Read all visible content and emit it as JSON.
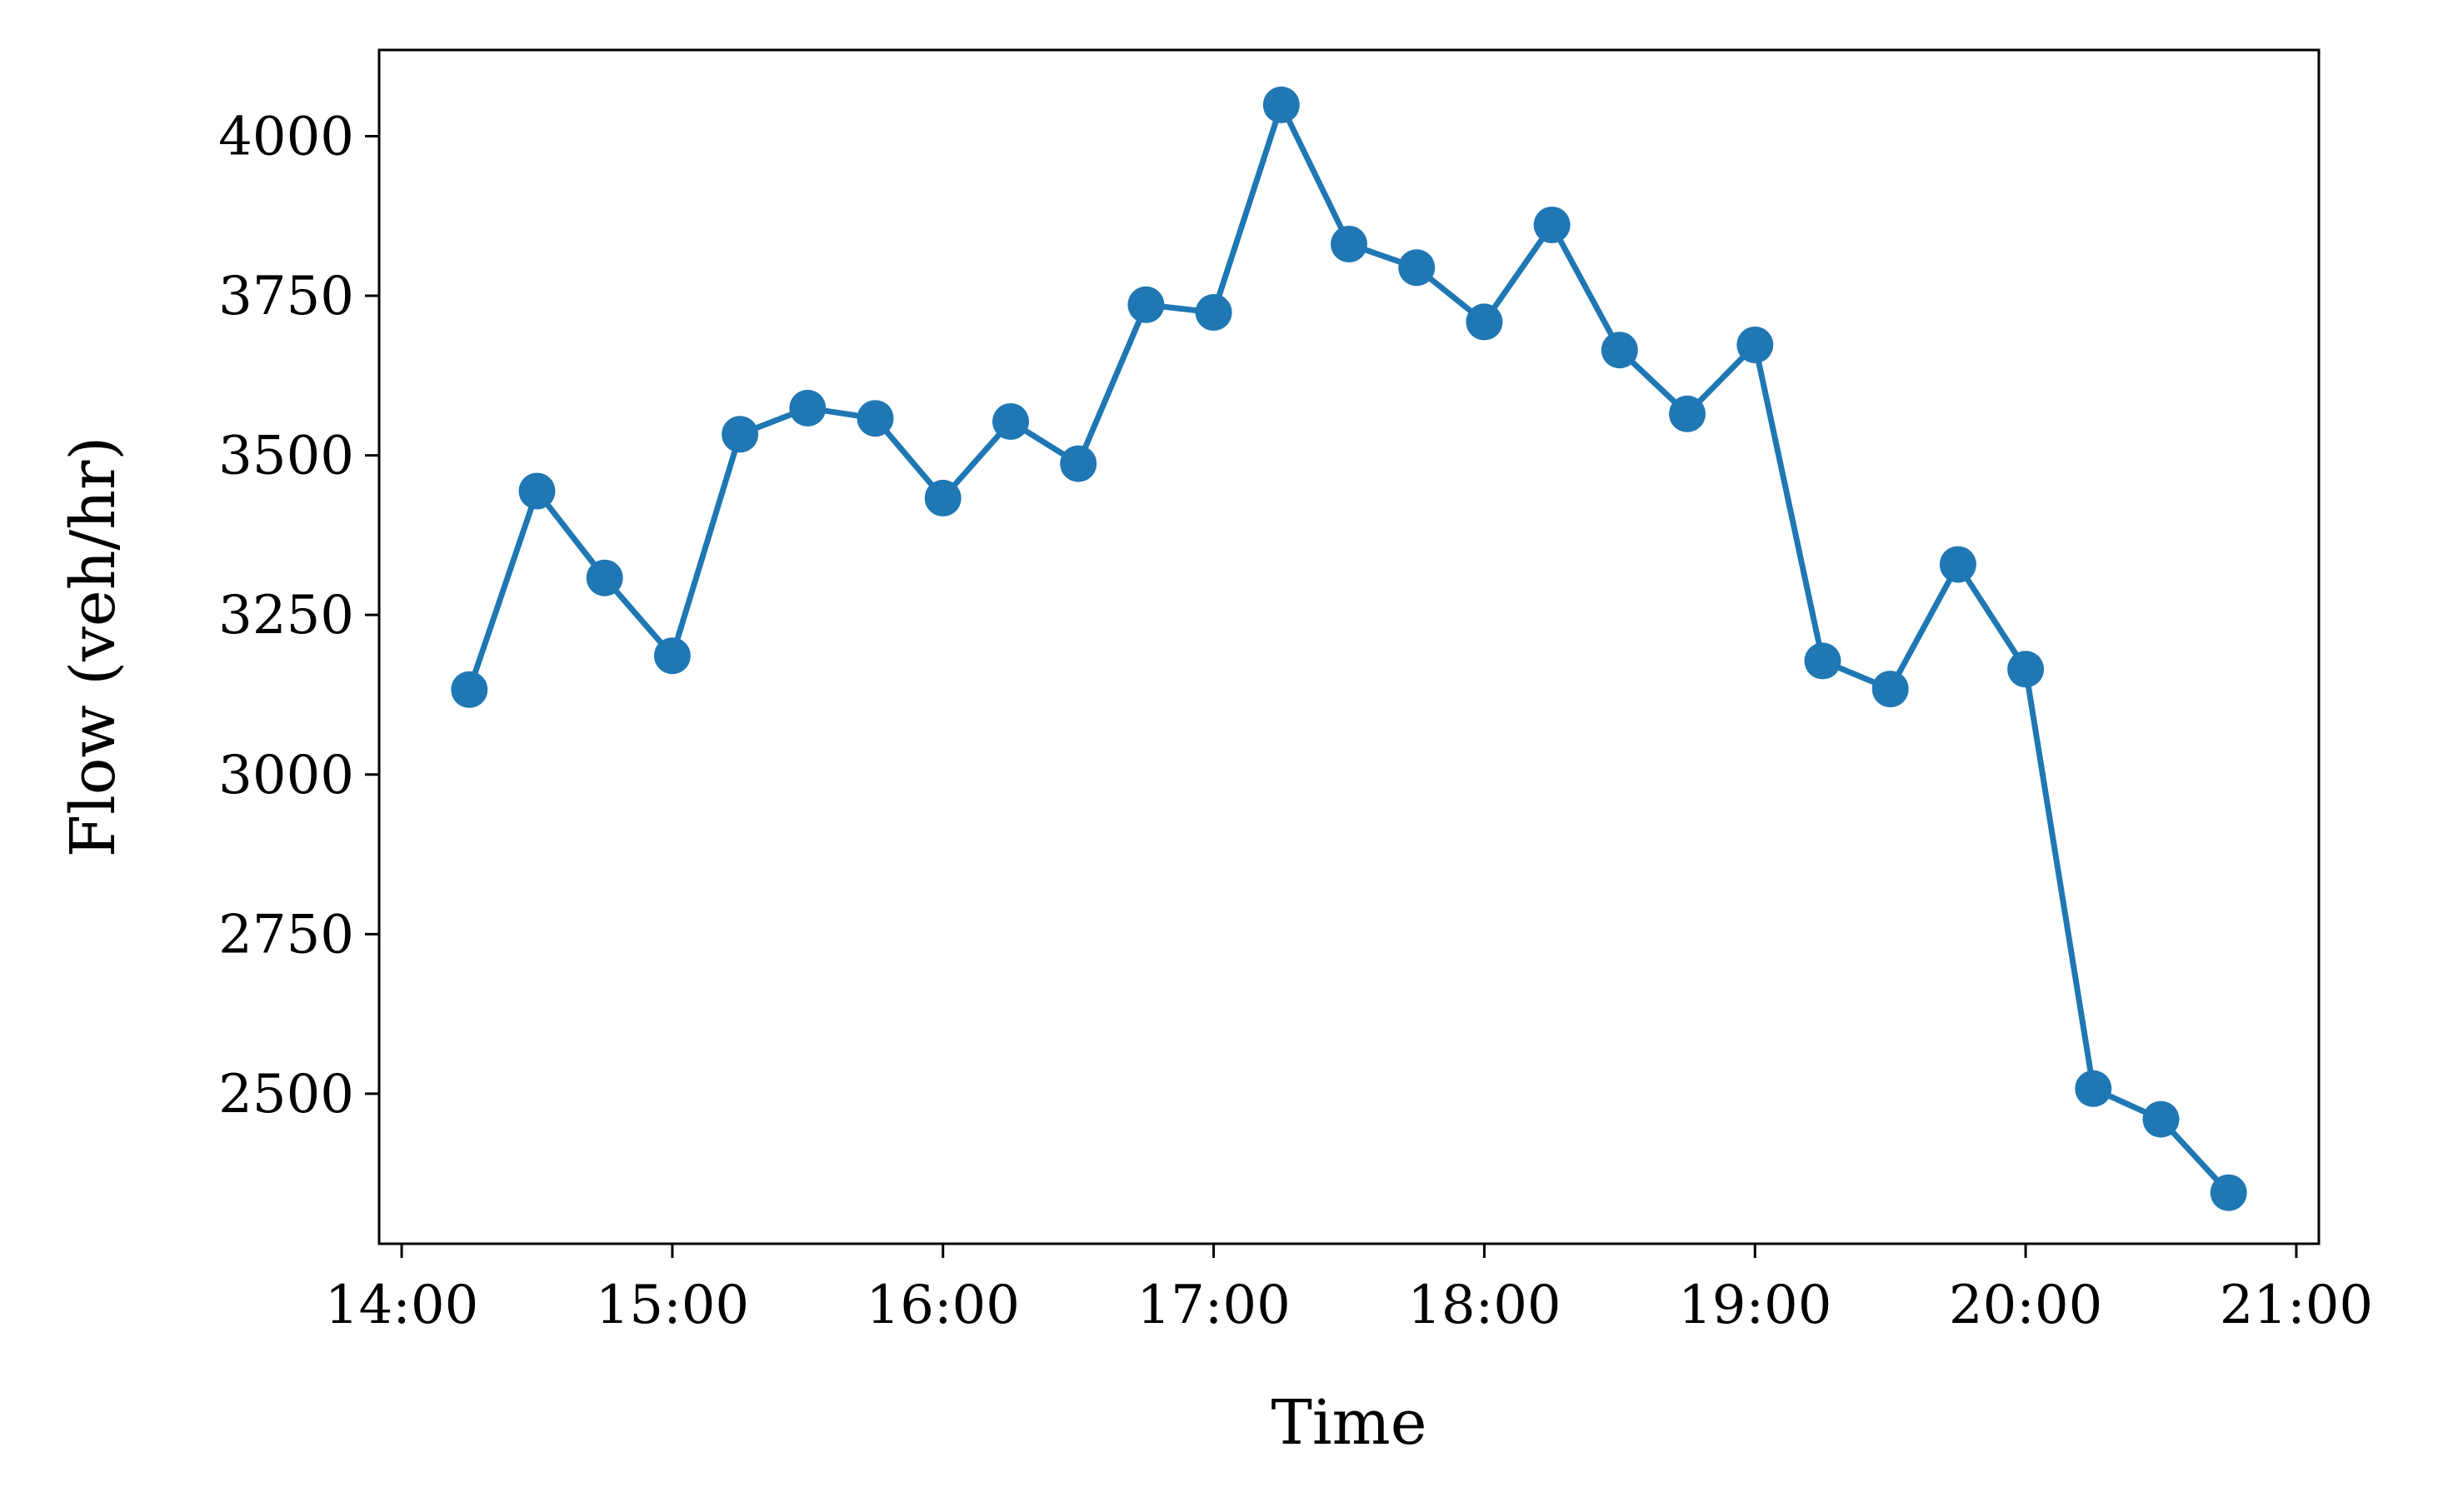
{
  "chart_data": {
    "type": "line",
    "title": "",
    "xlabel": "Time",
    "ylabel": "Flow (veh/hr)",
    "x_tick_labels": [
      "14:00",
      "15:00",
      "16:00",
      "17:00",
      "18:00",
      "19:00",
      "20:00",
      "21:00"
    ],
    "y_ticks": [
      2500,
      2750,
      3000,
      3250,
      3500,
      3750,
      4000
    ],
    "xlim": [
      "13:55",
      "21:05"
    ],
    "ylim": [
      2265,
      4135
    ],
    "grid": false,
    "legend": "none",
    "series": [
      {
        "color": "#1f77b4",
        "marker": "circle",
        "x": [
          "14:15",
          "14:30",
          "14:45",
          "15:00",
          "15:15",
          "15:30",
          "15:45",
          "16:00",
          "16:15",
          "16:30",
          "16:45",
          "17:00",
          "17:15",
          "17:30",
          "17:45",
          "18:00",
          "18:15",
          "18:30",
          "18:45",
          "19:00",
          "19:15",
          "19:30",
          "19:45",
          "20:00",
          "20:15",
          "20:30",
          "20:45"
        ],
        "y": [
          3133,
          3444,
          3308,
          3186,
          3533,
          3574,
          3558,
          3433,
          3553,
          3487,
          3736,
          3724,
          4049,
          3831,
          3794,
          3709,
          3861,
          3665,
          3565,
          3673,
          3178,
          3134,
          3329,
          3165,
          2508,
          2460,
          2345
        ]
      }
    ]
  }
}
